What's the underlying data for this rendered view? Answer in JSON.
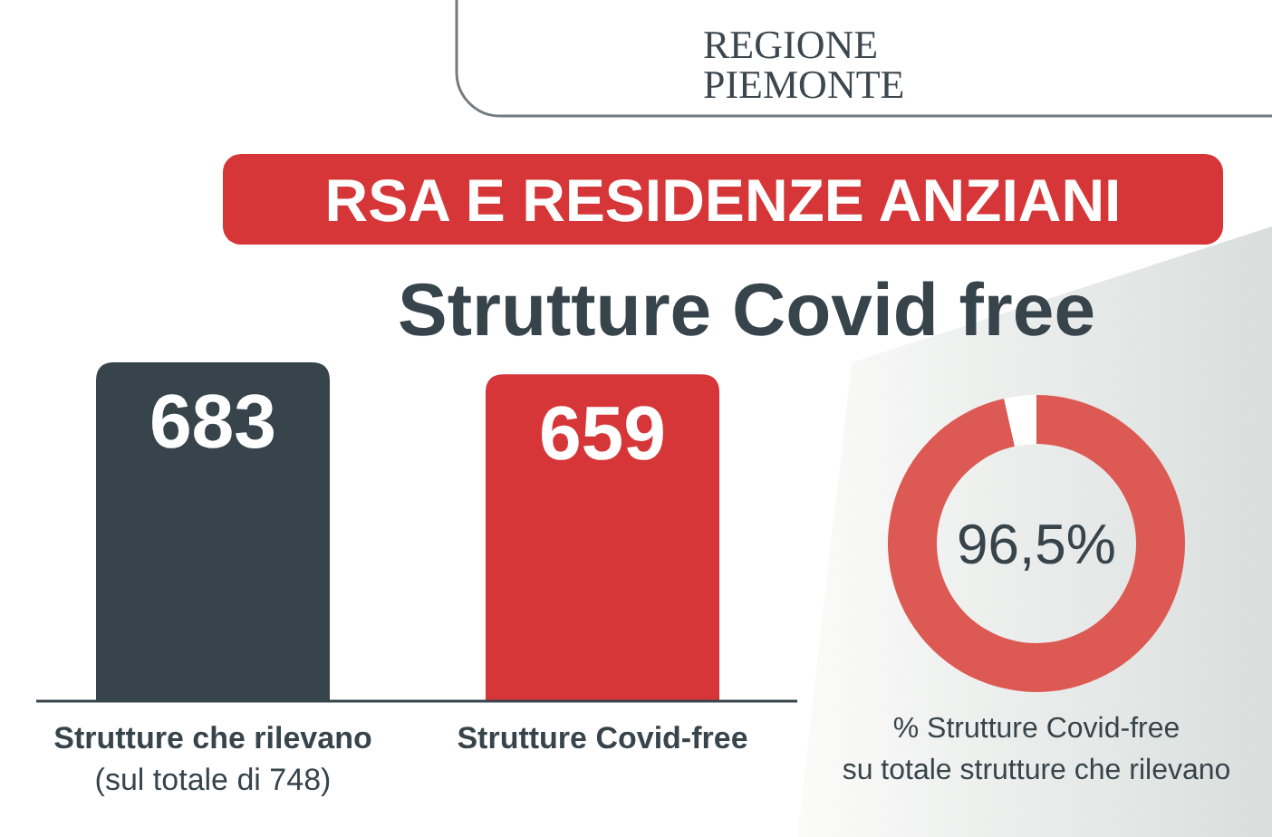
{
  "chart_data": [
    {
      "type": "bar",
      "title": "RSA E RESIDENZE ANZIANI",
      "subtitle": "Strutture Covid free",
      "annotations": [
        "REGIONE\nPIEMONTE"
      ],
      "categories": [
        "Strutture che rilevano\n(sul totale di 748)",
        "Strutture Covid-free"
      ],
      "values": [
        683,
        659
      ],
      "colors": [
        "#37444b",
        "#d63638"
      ],
      "data_labels": true
    },
    {
      "type": "donut",
      "title": "% Strutture Covid-free\nsu totale strutture che rilevano",
      "categories": [
        null,
        null
      ],
      "values": [
        96.5,
        3.5
      ],
      "colors": [
        "#dc5a53",
        "#ffffff"
      ],
      "value_labels": [
        "96,5%",
        null
      ]
    }
  ]
}
